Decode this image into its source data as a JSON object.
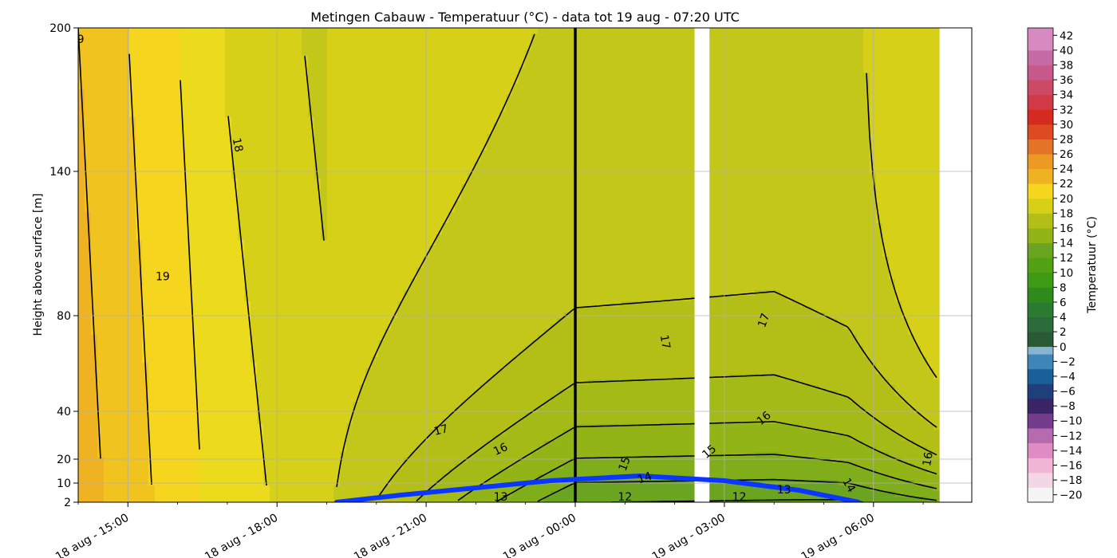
{
  "chart_data": {
    "type": "heatmap",
    "title": "Metingen Cabauw - Temperatuur (°C) - data tot 19 aug - 07:20 UTC",
    "xlabel": "",
    "ylabel": "Height above surface [m]",
    "colorbar_label": "Temperatuur (°C)",
    "grid": true,
    "x_ticks": [
      {
        "hours": 15,
        "label": "18 aug - 15:00"
      },
      {
        "hours": 18,
        "label": "18 aug - 18:00"
      },
      {
        "hours": 21,
        "label": "18 aug - 21:00"
      },
      {
        "hours": 24,
        "label": "19 aug - 00:00"
      },
      {
        "hours": 27,
        "label": "19 aug - 03:00"
      },
      {
        "hours": 30,
        "label": "19 aug - 06:00"
      }
    ],
    "y_ticks": [
      2,
      10,
      20,
      40,
      80,
      140,
      200
    ],
    "ylim": [
      2,
      200
    ],
    "colorbar_ticks": [
      -20,
      -18,
      -16,
      -14,
      -12,
      -10,
      -8,
      -6,
      -4,
      -2,
      0,
      2,
      4,
      6,
      8,
      10,
      12,
      14,
      16,
      18,
      20,
      22,
      24,
      26,
      28,
      30,
      32,
      34,
      36,
      38,
      40,
      42
    ],
    "colorbar_range": [
      -21,
      43
    ],
    "temperature_bands": [
      {
        "min": 12,
        "max": 13,
        "color": "#6aa420"
      },
      {
        "min": 13,
        "max": 14,
        "color": "#80ad1a"
      },
      {
        "min": 14,
        "max": 15,
        "color": "#93b417"
      },
      {
        "min": 15,
        "max": 16,
        "color": "#a3ba17"
      },
      {
        "min": 16,
        "max": 17,
        "color": "#b3bf17"
      },
      {
        "min": 17,
        "max": 18,
        "color": "#c3c719"
      },
      {
        "min": 18,
        "max": 19,
        "color": "#d6d019"
      },
      {
        "min": 19,
        "max": 20,
        "color": "#ecdb1c"
      },
      {
        "min": 20,
        "max": 21,
        "color": "#f5d51e"
      },
      {
        "min": 21,
        "max": 22,
        "color": "#f0c31e"
      },
      {
        "min": 22,
        "max": 23,
        "color": "#efb222"
      }
    ],
    "contour_labels": [
      {
        "value": "9",
        "hours": 14.05,
        "height": 195,
        "angle": 0
      },
      {
        "value": "19",
        "hours": 15.7,
        "height": 96,
        "angle": 0
      },
      {
        "value": "18",
        "hours": 17.2,
        "height": 151,
        "angle": 78
      },
      {
        "value": "17",
        "hours": 21.3,
        "height": 32,
        "angle": -15
      },
      {
        "value": "16",
        "hours": 22.5,
        "height": 24,
        "angle": -25
      },
      {
        "value": "15",
        "hours": 25.0,
        "height": 18,
        "angle": -70
      },
      {
        "value": "14",
        "hours": 25.4,
        "height": 12,
        "angle": -20
      },
      {
        "value": "13",
        "hours": 22.5,
        "height": 4,
        "angle": 0
      },
      {
        "value": "12",
        "hours": 25.0,
        "height": 4,
        "angle": 0
      },
      {
        "value": "17",
        "hours": 25.8,
        "height": 69,
        "angle": 80
      },
      {
        "value": "15",
        "hours": 26.7,
        "height": 23,
        "angle": -40
      },
      {
        "value": "12",
        "hours": 27.3,
        "height": 4,
        "angle": 0
      },
      {
        "value": "13",
        "hours": 28.2,
        "height": 7,
        "angle": 0
      },
      {
        "value": "16",
        "hours": 27.8,
        "height": 37,
        "angle": -40
      },
      {
        "value": "17",
        "hours": 27.8,
        "height": 78,
        "angle": -70
      },
      {
        "value": "14",
        "hours": 29.5,
        "height": 9,
        "angle": 60
      },
      {
        "value": "16",
        "hours": 31.1,
        "height": 20,
        "angle": -80
      }
    ],
    "boundary_layer_line": {
      "color": "#0a36ff",
      "points": [
        [
          19.2,
          2
        ],
        [
          20.5,
          5
        ],
        [
          22,
          8
        ],
        [
          23.5,
          11
        ],
        [
          25.3,
          13
        ],
        [
          27,
          11
        ],
        [
          28.5,
          7
        ],
        [
          29.7,
          2
        ]
      ]
    },
    "missing_data_gap": [
      26.4,
      26.7
    ],
    "data_end_hours": 31.33,
    "midnight_marker_hours": 24
  }
}
